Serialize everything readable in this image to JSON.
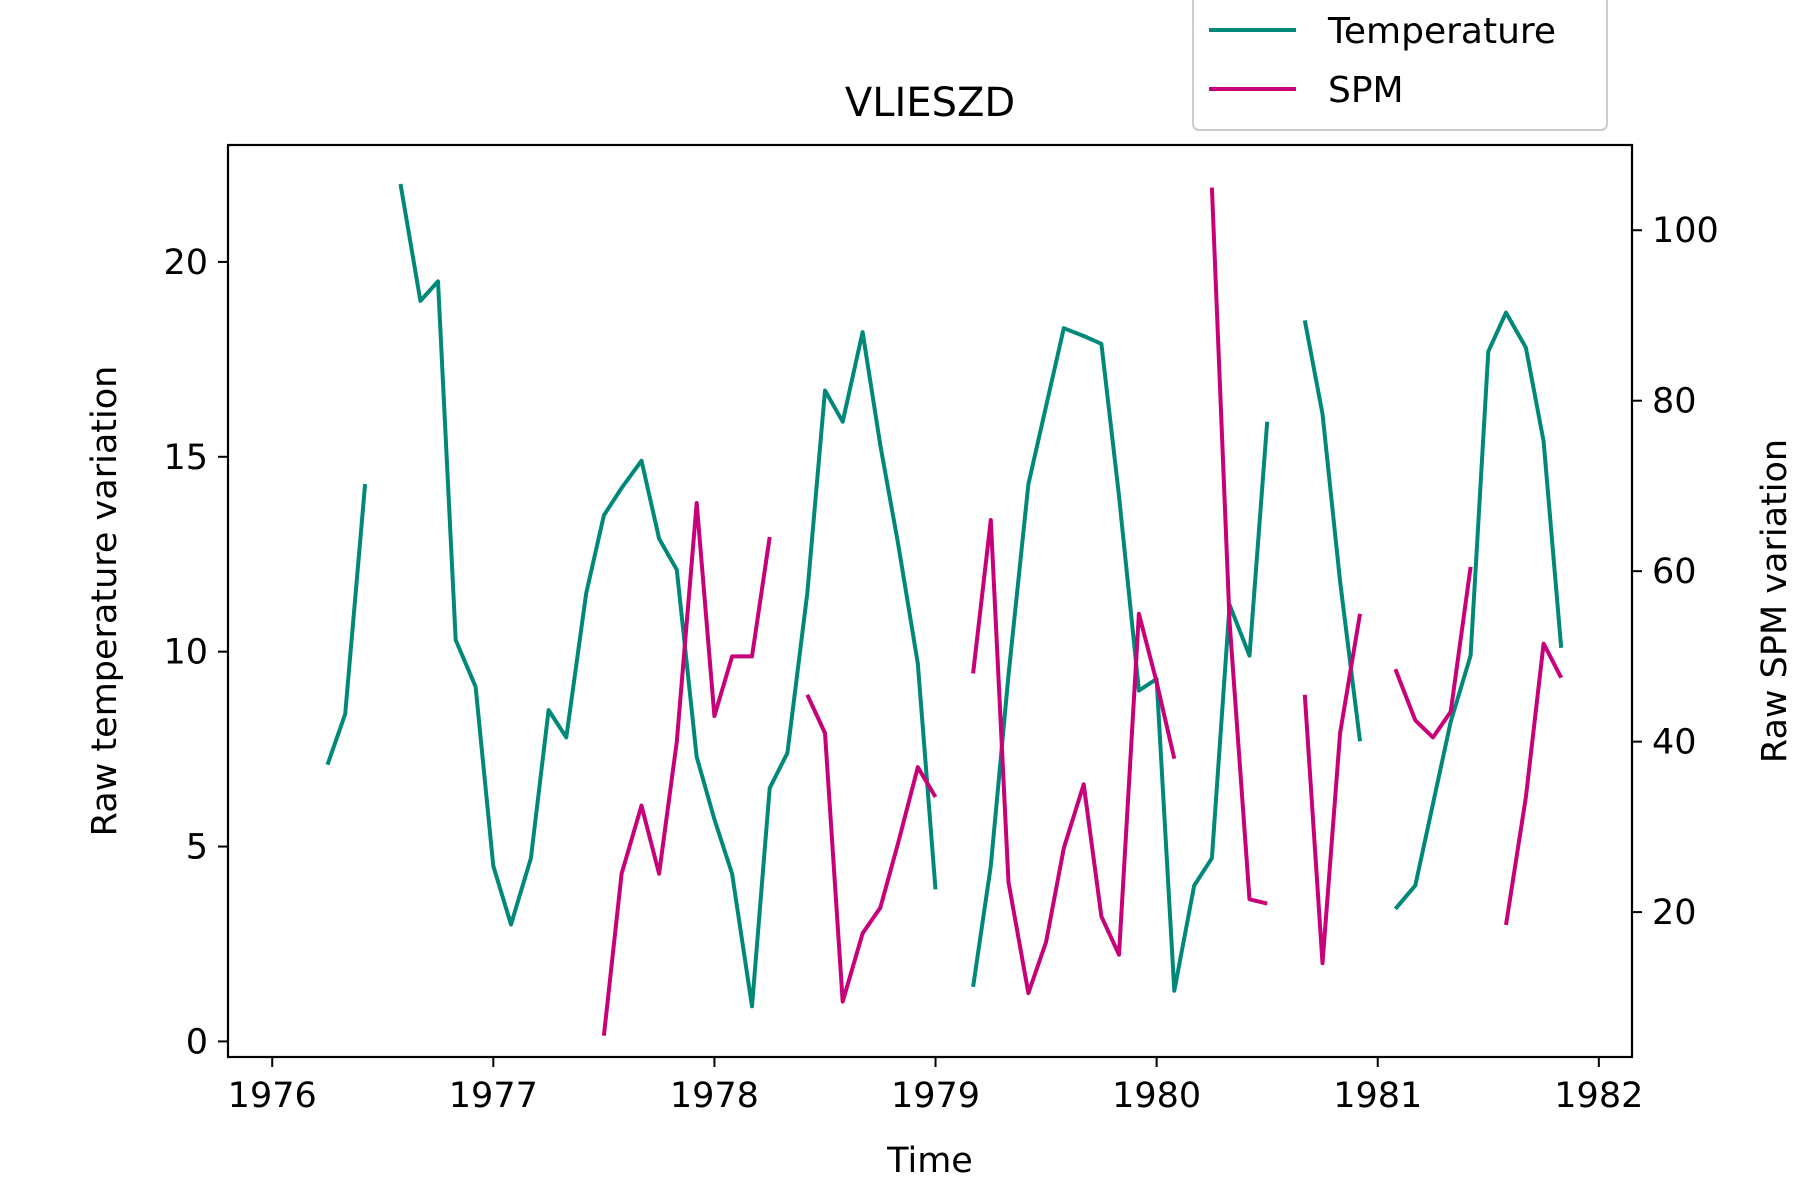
{
  "chart_data": {
    "type": "line",
    "title": "VLIESZD",
    "xlabel": "Time",
    "ylabel_left": "Raw temperature variation",
    "ylabel_right": "Raw SPM variation",
    "xlim": [
      1975.8,
      1982.15
    ],
    "ylim_left": [
      -0.4,
      23.0
    ],
    "ylim_right": [
      3.0,
      110.0
    ],
    "x_ticks": [
      1976,
      1977,
      1978,
      1979,
      1980,
      1981,
      1982
    ],
    "y_ticks_left": [
      0,
      5,
      10,
      15,
      20
    ],
    "y_ticks_right": [
      20,
      40,
      60,
      80,
      100
    ],
    "grid": false,
    "legend_position": "top-right",
    "series": [
      {
        "name": "Temperature",
        "axis": "left",
        "color": "#00897b",
        "segments": [
          [
            [
              1976.25,
              7.1
            ],
            [
              1976.33,
              8.4
            ],
            [
              1976.42,
              14.3
            ]
          ],
          [
            [
              1976.58,
              22.0
            ],
            [
              1976.67,
              19.0
            ],
            [
              1976.75,
              19.5
            ],
            [
              1976.83,
              10.3
            ],
            [
              1976.92,
              9.1
            ],
            [
              1977.0,
              4.5
            ],
            [
              1977.08,
              3.0
            ],
            [
              1977.17,
              4.7
            ],
            [
              1977.25,
              8.5
            ],
            [
              1977.33,
              7.8
            ],
            [
              1977.42,
              11.5
            ],
            [
              1977.5,
              13.5
            ],
            [
              1977.58,
              14.2
            ],
            [
              1977.67,
              14.9
            ],
            [
              1977.75,
              12.9
            ],
            [
              1977.83,
              12.1
            ],
            [
              1977.92,
              7.3
            ],
            [
              1978.0,
              5.7
            ],
            [
              1978.08,
              4.3
            ],
            [
              1978.17,
              0.9
            ],
            [
              1978.25,
              6.5
            ],
            [
              1978.33,
              7.4
            ],
            [
              1978.42,
              11.5
            ],
            [
              1978.5,
              16.7
            ],
            [
              1978.58,
              15.9
            ],
            [
              1978.67,
              18.2
            ],
            [
              1978.75,
              15.3
            ],
            [
              1978.83,
              12.8
            ],
            [
              1978.92,
              9.7
            ],
            [
              1979.0,
              3.9
            ]
          ],
          [
            [
              1979.17,
              1.4
            ],
            [
              1979.25,
              4.5
            ],
            [
              1979.33,
              9.4
            ],
            [
              1979.42,
              14.3
            ],
            [
              1979.5,
              16.3
            ],
            [
              1979.58,
              18.3
            ],
            [
              1979.67,
              18.1
            ],
            [
              1979.75,
              17.9
            ],
            [
              1979.83,
              14.0
            ],
            [
              1979.92,
              9.0
            ],
            [
              1980.0,
              9.3
            ],
            [
              1980.08,
              1.3
            ],
            [
              1980.17,
              4.0
            ],
            [
              1980.25,
              4.7
            ],
            [
              1980.33,
              11.2
            ],
            [
              1980.42,
              9.9
            ],
            [
              1980.5,
              15.9
            ]
          ],
          [
            [
              1980.67,
              18.5
            ],
            [
              1980.75,
              16.1
            ],
            [
              1980.83,
              11.8
            ],
            [
              1980.92,
              7.7
            ]
          ],
          [
            [
              1981.08,
              3.4
            ],
            [
              1981.17,
              4.0
            ],
            [
              1981.25,
              6.1
            ],
            [
              1981.33,
              8.2
            ],
            [
              1981.42,
              9.9
            ],
            [
              1981.5,
              17.7
            ],
            [
              1981.58,
              18.7
            ],
            [
              1981.67,
              17.8
            ],
            [
              1981.75,
              15.4
            ],
            [
              1981.83,
              10.1
            ]
          ]
        ]
      },
      {
        "name": "SPM",
        "axis": "right",
        "color": "#c8007a",
        "segments": [
          [
            [
              1977.5,
              5.5
            ],
            [
              1977.58,
              24.5
            ],
            [
              1977.67,
              32.5
            ],
            [
              1977.75,
              24.5
            ],
            [
              1977.83,
              40.0
            ],
            [
              1977.92,
              68.0
            ],
            [
              1978.0,
              43.0
            ],
            [
              1978.08,
              50.0
            ],
            [
              1978.17,
              50.0
            ],
            [
              1978.25,
              64.0
            ]
          ],
          [
            [
              1978.42,
              45.5
            ],
            [
              1978.5,
              41.0
            ],
            [
              1978.58,
              9.5
            ],
            [
              1978.67,
              17.5
            ],
            [
              1978.75,
              20.5
            ],
            [
              1978.83,
              28.0
            ],
            [
              1978.92,
              37.0
            ],
            [
              1979.0,
              33.5
            ]
          ],
          [
            [
              1979.17,
              48.0
            ],
            [
              1979.25,
              66.0
            ],
            [
              1979.33,
              23.5
            ],
            [
              1979.42,
              10.5
            ],
            [
              1979.5,
              16.5
            ],
            [
              1979.58,
              27.5
            ],
            [
              1979.67,
              35.0
            ],
            [
              1979.75,
              19.5
            ],
            [
              1979.83,
              15.0
            ],
            [
              1979.92,
              55.0
            ],
            [
              1980.0,
              47.0
            ],
            [
              1980.08,
              38.0
            ]
          ],
          [
            [
              1980.25,
              105.0
            ],
            [
              1980.33,
              54.0
            ],
            [
              1980.42,
              21.5
            ],
            [
              1980.5,
              21.0
            ]
          ],
          [
            [
              1980.67,
              45.5
            ],
            [
              1980.75,
              14.0
            ],
            [
              1980.83,
              41.0
            ],
            [
              1980.92,
              55.0
            ]
          ],
          [
            [
              1981.08,
              48.5
            ],
            [
              1981.17,
              42.5
            ],
            [
              1981.25,
              40.5
            ],
            [
              1981.33,
              43.5
            ],
            [
              1981.42,
              60.5
            ]
          ],
          [
            [
              1981.58,
              18.5
            ],
            [
              1981.67,
              33.5
            ],
            [
              1981.75,
              51.5
            ],
            [
              1981.83,
              47.5
            ]
          ]
        ]
      }
    ]
  }
}
